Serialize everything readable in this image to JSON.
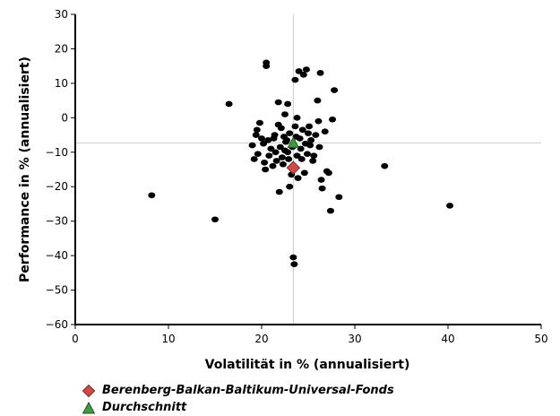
{
  "chart_data": {
    "type": "scatter",
    "xlabel": "Volatilität in % (annualisiert)",
    "ylabel": "Performance in % (annualisiert)",
    "xlim": [
      0,
      50
    ],
    "ylim": [
      -60,
      30
    ],
    "xticks": [
      0,
      10,
      20,
      30,
      40,
      50
    ],
    "yticks": [
      30,
      20,
      10,
      0,
      -10,
      -20,
      -30,
      -40,
      -50,
      -60
    ],
    "grid": false,
    "reference_lines": {
      "x": 23.4,
      "y": -7.3
    },
    "colors": {
      "points": "#000000",
      "fund": "#d24a43",
      "average": "#3f9b3c",
      "reference_line": "#cccccc"
    },
    "series": [
      {
        "name": "Berenberg-Balkan-Baltikum-Universal-Fonds",
        "marker": "diamond",
        "points": [
          [
            23.4,
            -14.5
          ]
        ]
      },
      {
        "name": "Durchschnitt",
        "marker": "triangle",
        "points": [
          [
            23.4,
            -7.3
          ]
        ]
      },
      {
        "name": "",
        "marker": "circle",
        "points": [
          [
            8.2,
            -22.5
          ],
          [
            15.0,
            -29.5
          ],
          [
            16.5,
            4.0
          ],
          [
            19.0,
            -8.0
          ],
          [
            19.2,
            -12.0
          ],
          [
            19.4,
            -5.0
          ],
          [
            19.5,
            -3.5
          ],
          [
            19.6,
            -10.5
          ],
          [
            19.8,
            -1.5
          ],
          [
            20.0,
            -6.0
          ],
          [
            20.2,
            -7.5
          ],
          [
            20.3,
            -13.0
          ],
          [
            20.4,
            -15.0
          ],
          [
            20.5,
            16.0
          ],
          [
            20.5,
            15.0
          ],
          [
            20.7,
            -6.5
          ],
          [
            20.8,
            -11.0
          ],
          [
            21.0,
            -9.0
          ],
          [
            21.2,
            -14.0
          ],
          [
            21.3,
            -6.0
          ],
          [
            21.4,
            -5.0
          ],
          [
            21.5,
            -10.0
          ],
          [
            21.6,
            -12.5
          ],
          [
            21.8,
            -2.0
          ],
          [
            21.8,
            4.5
          ],
          [
            21.9,
            -21.5
          ],
          [
            22.0,
            -8.5
          ],
          [
            22.1,
            -3.0
          ],
          [
            22.2,
            -11.5
          ],
          [
            22.3,
            -13.5
          ],
          [
            22.4,
            -5.5
          ],
          [
            22.5,
            -9.5
          ],
          [
            22.5,
            1.0
          ],
          [
            22.6,
            -7.0
          ],
          [
            22.7,
            -6.5
          ],
          [
            22.8,
            -10.0
          ],
          [
            22.8,
            4.0
          ],
          [
            22.9,
            -12.0
          ],
          [
            23.0,
            -20.0
          ],
          [
            23.0,
            -4.5
          ],
          [
            23.2,
            -16.5
          ],
          [
            23.3,
            -8.5
          ],
          [
            23.4,
            -40.5
          ],
          [
            23.5,
            -42.5
          ],
          [
            23.6,
            -2.5
          ],
          [
            23.6,
            11.0
          ],
          [
            23.7,
            -5.5
          ],
          [
            23.8,
            0.0
          ],
          [
            23.8,
            -11.0
          ],
          [
            23.9,
            -17.5
          ],
          [
            24.0,
            13.5
          ],
          [
            24.1,
            -6.0
          ],
          [
            24.2,
            -9.0
          ],
          [
            24.3,
            -12.0
          ],
          [
            24.4,
            -3.5
          ],
          [
            24.5,
            12.5
          ],
          [
            24.6,
            -16.0
          ],
          [
            24.7,
            -7.5
          ],
          [
            24.8,
            14.0
          ],
          [
            24.9,
            -10.5
          ],
          [
            25.0,
            -4.5
          ],
          [
            25.1,
            -2.5
          ],
          [
            25.2,
            -8.0
          ],
          [
            25.3,
            -6.5
          ],
          [
            25.5,
            -12.5
          ],
          [
            25.6,
            -11.0
          ],
          [
            25.8,
            -5.0
          ],
          [
            26.0,
            5.0
          ],
          [
            26.1,
            -1.0
          ],
          [
            26.2,
            -8.5
          ],
          [
            26.3,
            13.0
          ],
          [
            26.4,
            -18.0
          ],
          [
            26.5,
            -20.5
          ],
          [
            26.8,
            -4.0
          ],
          [
            27.0,
            -15.5
          ],
          [
            27.2,
            -16.0
          ],
          [
            27.4,
            -27.0
          ],
          [
            27.6,
            -0.5
          ],
          [
            27.8,
            8.0
          ],
          [
            28.3,
            -23.0
          ],
          [
            33.2,
            -14.0
          ],
          [
            40.2,
            -25.5
          ]
        ]
      }
    ]
  },
  "legend": {
    "fund_label": "Berenberg-Balkan-Baltikum-Universal-Fonds",
    "average_label": "Durchschnitt"
  }
}
